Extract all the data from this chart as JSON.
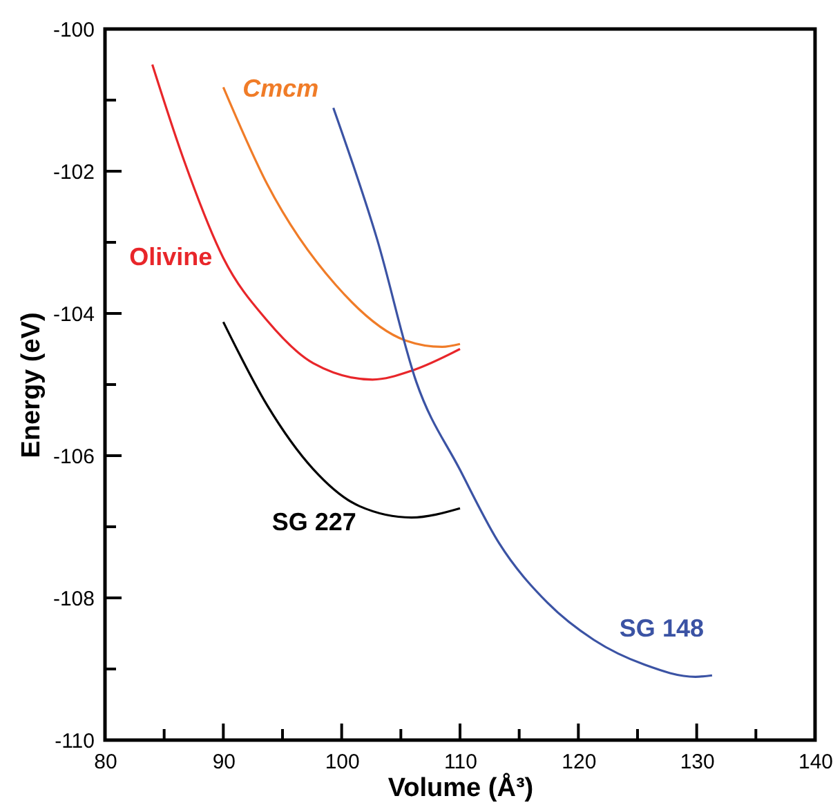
{
  "chart_data": {
    "type": "line",
    "xlabel": "Volume (Å³)",
    "ylabel": "Energy (eV)",
    "xlim": [
      80,
      140
    ],
    "ylim": [
      -110,
      -100
    ],
    "xticks": [
      80,
      {
        "value": 85,
        "label": null
      },
      90,
      {
        "value": 95,
        "label": null
      },
      100,
      {
        "value": 105,
        "label": null
      },
      110,
      {
        "value": 115,
        "label": null
      },
      120,
      {
        "value": 125,
        "label": null
      },
      130,
      {
        "value": 135,
        "label": null
      },
      140
    ],
    "yticks": [
      -110,
      {
        "value": -109,
        "label": null
      },
      -108,
      {
        "value": -107,
        "label": null
      },
      -106,
      {
        "value": -105,
        "label": null
      },
      -104,
      {
        "value": -103,
        "label": null
      },
      -102,
      {
        "value": -101,
        "label": null
      },
      -100
    ],
    "grid": false,
    "marker": "none",
    "line_style": "solid",
    "series": [
      {
        "name": "Cmcm",
        "color": "#f07c28",
        "x": [
          90.0,
          93.7,
          99.5,
          105.4,
          108.5,
          110.0
        ],
        "values": [
          -100.82,
          -102.18,
          -103.6,
          -104.38,
          -104.47,
          -104.43
        ]
      },
      {
        "name": "Olivine",
        "color": "#e8262a",
        "x": [
          84.0,
          86.7,
          90.0,
          93.7,
          97.6,
          102.6,
          106.0,
          110.0
        ],
        "values": [
          -100.5,
          -101.86,
          -103.22,
          -104.1,
          -104.7,
          -104.93,
          -104.8,
          -104.5
        ]
      },
      {
        "name": "SG 227",
        "color": "#000000",
        "x": [
          90.0,
          93.7,
          97.6,
          101.5,
          105.9,
          110.0
        ],
        "values": [
          -104.12,
          -105.29,
          -106.19,
          -106.71,
          -106.87,
          -106.74
        ]
      },
      {
        "name": "SG 148",
        "color": "#3b53a4",
        "x": [
          99.3,
          103.0,
          106.3,
          110.0,
          113.3,
          117.4,
          121.3,
          125.6,
          129.9,
          131.3
        ],
        "values": [
          -101.11,
          -102.96,
          -104.96,
          -106.2,
          -107.23,
          -108.07,
          -108.59,
          -108.94,
          -109.11,
          -109.09
        ]
      }
    ]
  }
}
